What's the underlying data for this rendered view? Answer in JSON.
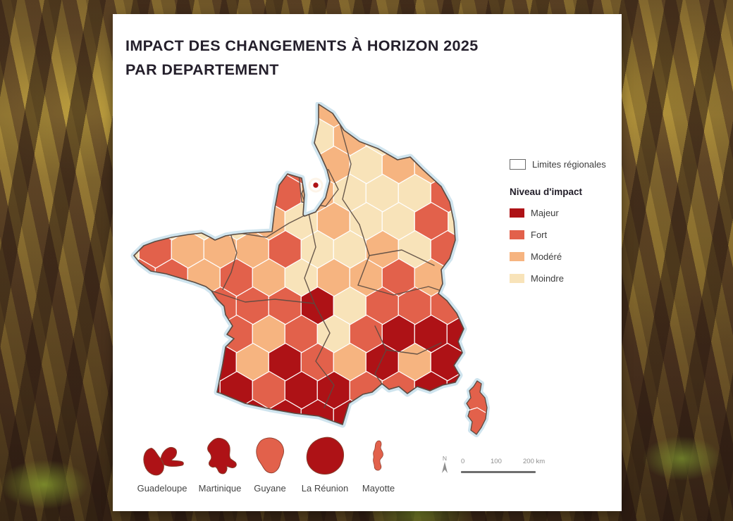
{
  "card": {
    "title_line1": "IMPACT DES CHANGEMENTS À HORIZON 2025",
    "title_line2": "PAR DEPARTEMENT"
  },
  "legend": {
    "regional_limits_label": "Limites régionales",
    "impact_title": "Niveau d'impact",
    "levels": [
      {
        "key": "majeur",
        "label": "Majeur",
        "color": "#ae1216"
      },
      {
        "key": "fort",
        "label": "Fort",
        "color": "#e2614b"
      },
      {
        "key": "modere",
        "label": "Modéré",
        "color": "#f6b480"
      },
      {
        "key": "moindre",
        "label": "Moindre",
        "color": "#f8e3b9"
      }
    ]
  },
  "map": {
    "sea_halo_color": "#cfe4ee",
    "region_border_color": "#5a4b42",
    "department_border_color": "#ffffff",
    "level_codes": {
      "1": "moindre",
      "2": "modere",
      "3": "fort",
      "4": "majeur"
    },
    "grid": [
      ".....12.....",
      ".....121....",
      ".....32122..",
      "....321113..",
      "....212113..",
      "3222311213..",
      "3323212232..",
      "..33341333..",
      "...32313444.",
      "..42432424..",
      "..443443344.",
      "...44443...."
    ],
    "paris_dot_level": "majeur",
    "corsica_level": "fort"
  },
  "overseas": [
    {
      "name": "Guadeloupe",
      "level": "majeur"
    },
    {
      "name": "Martinique",
      "level": "majeur"
    },
    {
      "name": "Guyane",
      "level": "fort"
    },
    {
      "name": "La Réunion",
      "level": "majeur"
    },
    {
      "name": "Mayotte",
      "level": "fort"
    }
  ],
  "scalebar": {
    "north_label": "N",
    "labels": [
      "0",
      "100",
      "200 km"
    ]
  }
}
